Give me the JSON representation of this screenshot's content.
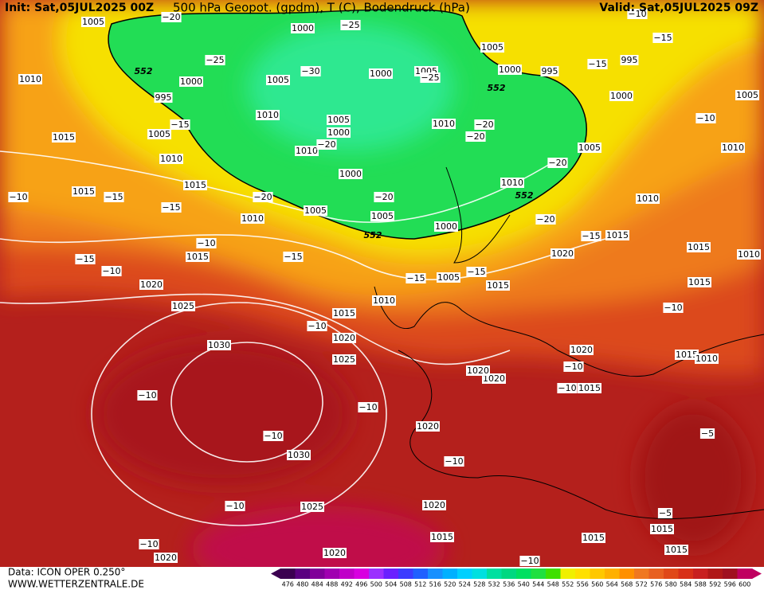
{
  "header": {
    "init": "Init: Sat,05JUL2025 00Z",
    "title": "500 hPa Geopot. (gpdm), T (C), Bodendruck (hPa)",
    "valid": "Valid: Sat,05JUL2025 09Z"
  },
  "footer": {
    "data": "Data: ICON OPER 0.250°",
    "site": "WWW.WETTERZENTRALE.DE"
  },
  "colorbar": {
    "levels": [
      476,
      480,
      484,
      488,
      492,
      496,
      500,
      504,
      508,
      512,
      516,
      520,
      524,
      528,
      532,
      536,
      540,
      544,
      548,
      552,
      556,
      560,
      564,
      568,
      572,
      576,
      580,
      584,
      588,
      592,
      596,
      600
    ],
    "colors": [
      "#3b0050",
      "#5a0080",
      "#800099",
      "#a000b0",
      "#c000c8",
      "#d800e0",
      "#9b30ff",
      "#6a20ff",
      "#3c3cff",
      "#2060ff",
      "#1890ff",
      "#00b0ff",
      "#00d0ff",
      "#00e0e0",
      "#00e0a0",
      "#00d880",
      "#00e060",
      "#20e040",
      "#40e000",
      "#f0f000",
      "#ffe000",
      "#ffc800",
      "#ffb000",
      "#ff9000",
      "#f07820",
      "#e86020",
      "#e04818",
      "#d83018",
      "#c82020",
      "#b01818",
      "#a01020",
      "#c00060"
    ]
  },
  "map": {
    "pressure_labels": [
      "1005",
      "1010",
      "1015",
      "1010",
      "1015",
      "1015",
      "1010",
      "1015",
      "1020",
      "1025",
      "1030",
      "1030",
      "1025",
      "1020",
      "1025",
      "1020",
      "1015",
      "1010",
      "1005",
      "1015",
      "1020",
      "1015",
      "1010",
      "1010",
      "1005",
      "1000",
      "995",
      "995",
      "1005",
      "1000",
      "1005",
      "1000",
      "1005",
      "1000",
      "1000",
      "995",
      "1005",
      "1010",
      "1005",
      "1000",
      "1010",
      "1000",
      "1005",
      "1005",
      "1000",
      "1010",
      "1010",
      "1005",
      "1020",
      "1020",
      "1020",
      "1020",
      "1015",
      "1015",
      "1015",
      "1015",
      "1020",
      "1015",
      "1015",
      "1015",
      "1015",
      "1010",
      "1010",
      "1020"
    ],
    "temperature_labels": [
      "−20",
      "−25",
      "−25",
      "−30",
      "−25",
      "−20",
      "−20",
      "−20",
      "−15",
      "−15",
      "−15",
      "−10",
      "−15",
      "−10",
      "−10",
      "−15",
      "−20",
      "−20",
      "−20",
      "−20",
      "−15",
      "−15",
      "−15",
      "−15",
      "−15",
      "−10",
      "−10",
      "−10",
      "−10",
      "−10",
      "−10",
      "−10",
      "−10",
      "−10",
      "−10",
      "−5",
      "−5",
      "−10",
      "−10",
      "−10"
    ],
    "height_labels": [
      "552",
      "552",
      "552",
      "552"
    ]
  }
}
